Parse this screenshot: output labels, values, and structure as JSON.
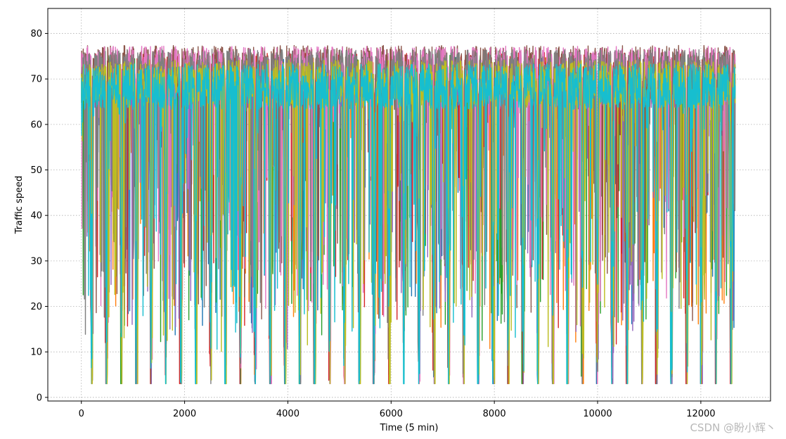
{
  "chart_data": {
    "type": "line",
    "title": "",
    "xlabel": "Time (5 min)",
    "ylabel": "Traffic speed",
    "xlim": [
      -650,
      13350
    ],
    "ylim": [
      -0.8,
      85.5
    ],
    "x_ticks": [
      0,
      2000,
      4000,
      6000,
      8000,
      10000,
      12000
    ],
    "y_ticks": [
      0,
      10,
      20,
      30,
      40,
      50,
      60,
      70,
      80
    ],
    "grid": true,
    "grid_style": "dotted",
    "legend": "none",
    "x_range": [
      0,
      12671
    ],
    "y_value_range": [
      3,
      82.5
    ],
    "daily_period": 288,
    "colors": [
      "#1f77b4",
      "#ff7f0e",
      "#2ca02c",
      "#d62728",
      "#9467bd",
      "#8c564b",
      "#e377c2",
      "#7f7f7f",
      "#bcbd22",
      "#17becf"
    ]
  },
  "watermark": "CSDN @盼小辉丶"
}
